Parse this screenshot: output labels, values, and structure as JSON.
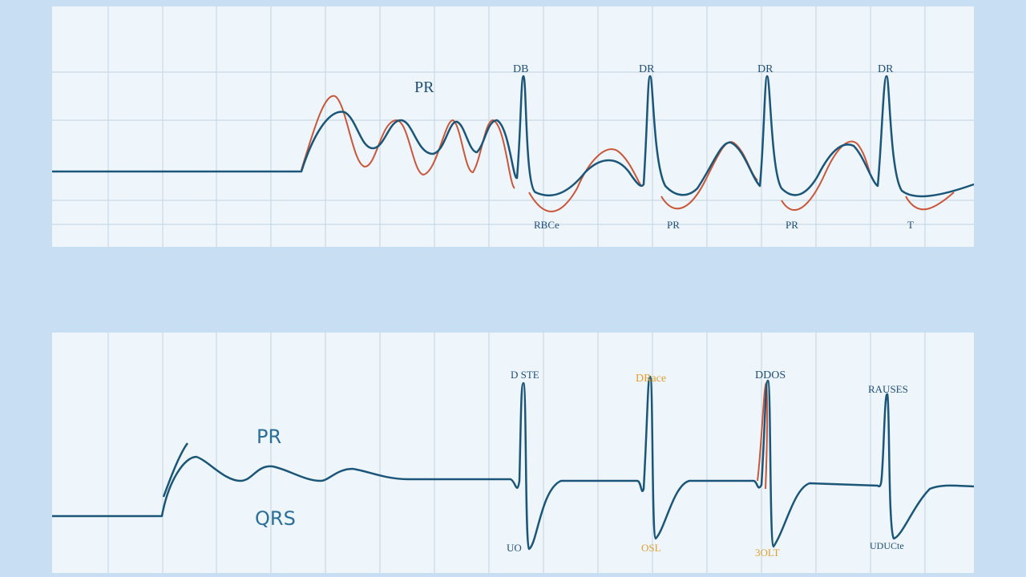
{
  "top_panel": {
    "labels": [
      "PR",
      "DB",
      "DR",
      "DR",
      "DR",
      "RBCe",
      "PR",
      "PR",
      "T"
    ]
  },
  "bottom_panel": {
    "labels": [
      "PR",
      "QRS",
      "D STE",
      "DRace",
      "DDOS",
      "RAUSES",
      "UO",
      "OSL",
      "3OLT",
      "UDUCte"
    ]
  }
}
